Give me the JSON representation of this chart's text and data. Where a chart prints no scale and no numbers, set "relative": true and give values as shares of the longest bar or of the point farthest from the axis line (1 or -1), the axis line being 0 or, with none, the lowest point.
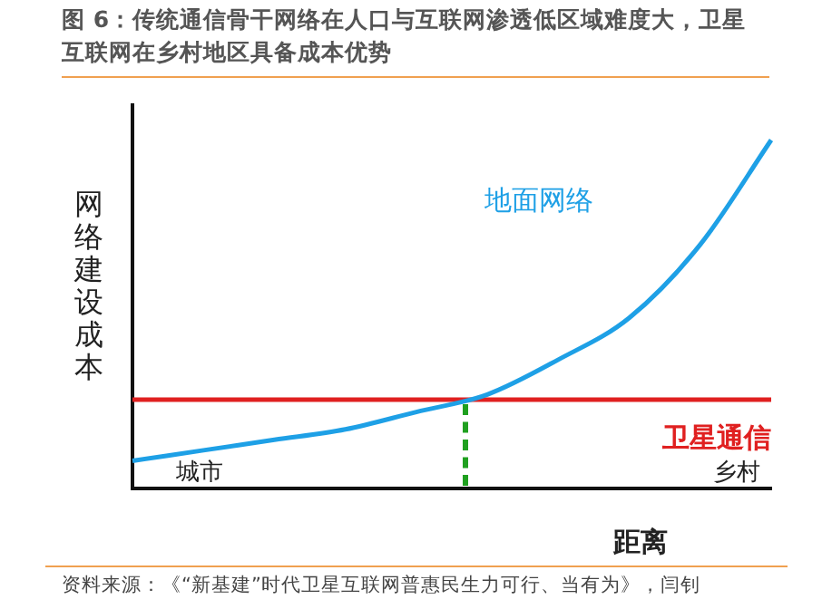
{
  "chart_data": {
    "type": "line",
    "title": "图 6：传统通信骨干网络在人口与互联网渗透低区域难度大，卫星互联网在乡村地区具备成本优势",
    "xlabel": "距离",
    "ylabel": "网络建设成本",
    "relative": true,
    "grid": false,
    "legend": false,
    "marker": "none",
    "categories": [
      null,
      null,
      null,
      null,
      null,
      null,
      null,
      null,
      null,
      null
    ],
    "series": [
      {
        "name": "地面网络",
        "color": "#1ea0e6",
        "values": [
          0.08,
          0.11,
          0.14,
          0.17,
          0.22,
          0.27,
          0.37,
          0.49,
          0.7,
          1
        ]
      },
      {
        "name": "卫星通信",
        "color": "#e02020",
        "values": [
          0.255,
          0.255,
          0.255,
          0.255,
          0.255,
          0.255,
          0.255,
          0.255,
          0.255,
          0.255
        ]
      }
    ],
    "annotations": [
      "城市",
      "乡村",
      "资料来源：《“新基建”时代卫星互联网普惠民生力可行、当有为》，闫钊"
    ]
  }
}
